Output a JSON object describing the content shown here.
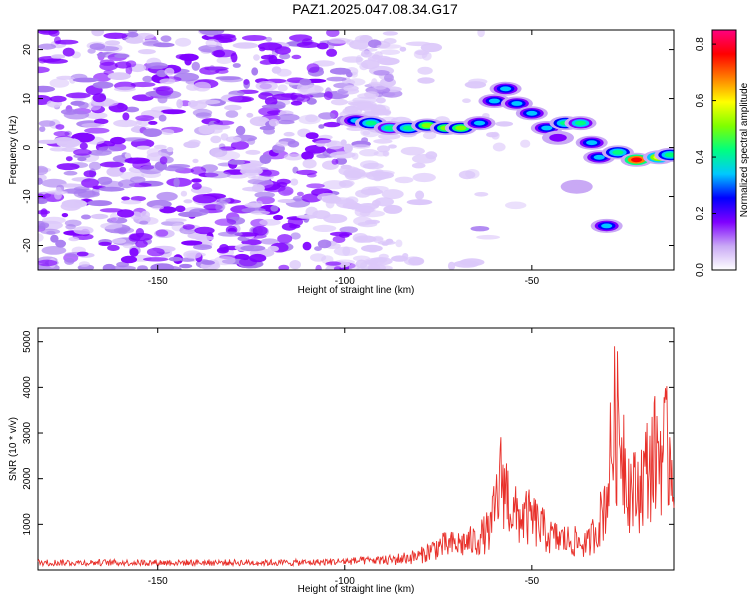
{
  "title": "PAZ1.2025.047.08.34.G17",
  "chart_data": [
    {
      "type": "heatmap",
      "xlabel": "Height of straight line (km)",
      "ylabel": "Frequency (Hz)",
      "xlim": [
        -182,
        -12
      ],
      "ylim": [
        -25,
        24
      ],
      "xticks": [
        -150,
        -100,
        -50
      ],
      "yticks": [
        20,
        10,
        0,
        -10,
        -20
      ],
      "colorbar": {
        "label": "Normalized spectral amplitude",
        "range": [
          0,
          0.85
        ],
        "ticks": [
          "0.0",
          "0.2",
          "0.4",
          "0.6",
          "0.8"
        ],
        "colors": [
          "#ffffff",
          "#c9a9f5",
          "#7f00ff",
          "#0000ff",
          "#00c8ff",
          "#00ff7f",
          "#7fff00",
          "#ffff00",
          "#ff7f00",
          "#ff0000",
          "#ff0080"
        ]
      },
      "ridge": [
        {
          "x": -97,
          "y": 5.5,
          "a": 0.3
        },
        {
          "x": -93,
          "y": 5.0,
          "a": 0.45
        },
        {
          "x": -88,
          "y": 4.0,
          "a": 0.4
        },
        {
          "x": -83,
          "y": 4.0,
          "a": 0.45
        },
        {
          "x": -78,
          "y": 4.5,
          "a": 0.55
        },
        {
          "x": -73,
          "y": 4.0,
          "a": 0.55
        },
        {
          "x": -69,
          "y": 4.0,
          "a": 0.5
        },
        {
          "x": -64,
          "y": 5.0,
          "a": 0.3
        },
        {
          "x": -60,
          "y": 9.5,
          "a": 0.35
        },
        {
          "x": -57,
          "y": 12.0,
          "a": 0.3
        },
        {
          "x": -54,
          "y": 9.0,
          "a": 0.3
        },
        {
          "x": -50,
          "y": 7.0,
          "a": 0.35
        },
        {
          "x": -46,
          "y": 4.0,
          "a": 0.3
        },
        {
          "x": -41,
          "y": 5.0,
          "a": 0.45
        },
        {
          "x": -37,
          "y": 5.0,
          "a": 0.4
        },
        {
          "x": -34,
          "y": 1.0,
          "a": 0.3
        },
        {
          "x": -32,
          "y": -2.0,
          "a": 0.35
        },
        {
          "x": -27,
          "y": -1.0,
          "a": 0.45
        },
        {
          "x": -22,
          "y": -2.5,
          "a": 0.8
        },
        {
          "x": -16,
          "y": -2.0,
          "a": 0.6
        },
        {
          "x": -13,
          "y": -1.5,
          "a": 0.45
        },
        {
          "x": -30,
          "y": -16.0,
          "a": 0.3
        },
        {
          "x": -43,
          "y": 2.0,
          "a": 0.2
        },
        {
          "x": -38,
          "y": -8.0,
          "a": 0.1
        }
      ]
    },
    {
      "type": "line",
      "xlabel": "Height of straight line (km)",
      "ylabel": "SNR (10 * v/v)",
      "xlim": [
        -182,
        -12
      ],
      "ylim": [
        0,
        5300
      ],
      "xticks": [
        -150,
        -100,
        -50
      ],
      "yticks": [
        1000,
        2000,
        3000,
        4000,
        5000
      ],
      "series": [
        {
          "color": "#e8302a",
          "envelope_x": [
            -182,
            -110,
            -90,
            -80,
            -75,
            -70,
            -65,
            -61,
            -58,
            -55,
            -50,
            -45,
            -40,
            -35,
            -32,
            -30,
            -28,
            -26,
            -24,
            -22,
            -19,
            -16,
            -13,
            -12
          ],
          "envelope_y": [
            180,
            180,
            240,
            380,
            650,
            700,
            800,
            1100,
            2600,
            1500,
            1400,
            900,
            800,
            700,
            1300,
            2000,
            4000,
            3700,
            2300,
            2100,
            2800,
            3300,
            3200,
            3000
          ]
        }
      ]
    }
  ]
}
